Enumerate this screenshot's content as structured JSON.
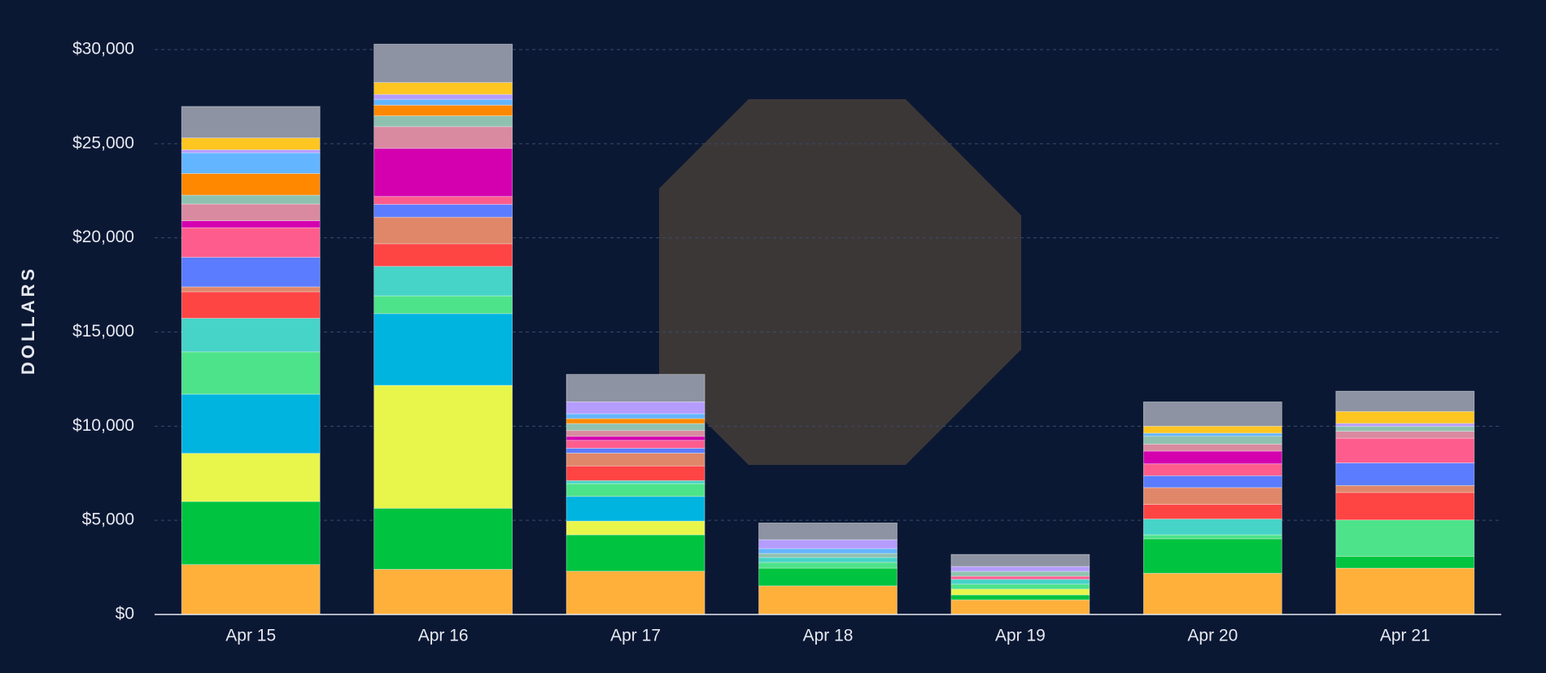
{
  "chart_data": {
    "type": "stacked_bar",
    "y_label": "DOLLARS",
    "categories": [
      "Apr 15",
      "Apr 16",
      "Apr 17",
      "Apr 18",
      "Apr 19",
      "Apr 20",
      "Apr 21"
    ],
    "ylim": [
      0,
      30000
    ],
    "yticks": [
      {
        "value": 0,
        "label": "$0"
      },
      {
        "value": 5000,
        "label": "$5,000"
      },
      {
        "value": 10000,
        "label": "$10,000"
      },
      {
        "value": 15000,
        "label": "$15,000"
      },
      {
        "value": 20000,
        "label": "$20,000"
      },
      {
        "value": 25000,
        "label": "$25,000"
      },
      {
        "value": 30000,
        "label": "$30,000"
      }
    ],
    "grid": true,
    "series": [
      {
        "color": "#ffb03b",
        "values": [
          2650,
          2400,
          2300,
          1520,
          780,
          2190,
          2460
        ]
      },
      {
        "color": "#00c43f",
        "values": [
          3350,
          3240,
          1930,
          940,
          260,
          1830,
          630
        ]
      },
      {
        "color": "#e8f54a",
        "values": [
          2560,
          6530,
          730,
          0,
          310,
          0,
          0
        ]
      },
      {
        "color": "#00b4e0",
        "values": [
          3140,
          3810,
          1310,
          0,
          0,
          0,
          0
        ]
      },
      {
        "color": "#4de38a",
        "values": [
          2250,
          940,
          680,
          310,
          260,
          210,
          1930
        ]
      },
      {
        "color": "#46d4c8",
        "values": [
          1780,
          1570,
          160,
          260,
          260,
          840,
          0
        ]
      },
      {
        "color": "#ff4444",
        "values": [
          1410,
          1200,
          780,
          0,
          0,
          780,
          1460
        ]
      },
      {
        "color": "#e0876a",
        "values": [
          260,
          1410,
          680,
          0,
          0,
          890,
          370
        ]
      },
      {
        "color": "#5b7cff",
        "values": [
          1570,
          680,
          260,
          0,
          0,
          630,
          1200
        ]
      },
      {
        "color": "#ff5c8e",
        "values": [
          1570,
          420,
          420,
          0,
          160,
          630,
          1310
        ]
      },
      {
        "color": "#d400b0",
        "values": [
          370,
          2560,
          210,
          0,
          0,
          680,
          0
        ]
      },
      {
        "color": "#d98aa0",
        "values": [
          890,
          1150,
          310,
          0,
          0,
          370,
          370
        ]
      },
      {
        "color": "#8fc1b0",
        "values": [
          470,
          570,
          370,
          210,
          260,
          420,
          260
        ]
      },
      {
        "color": "#ff8800",
        "values": [
          1150,
          570,
          260,
          0,
          0,
          0,
          0
        ]
      },
      {
        "color": "#64b5ff",
        "values": [
          1100,
          310,
          260,
          260,
          0,
          160,
          0
        ]
      },
      {
        "color": "#b59cff",
        "values": [
          160,
          260,
          630,
          470,
          260,
          0,
          160
        ]
      },
      {
        "color": "#ffc520",
        "values": [
          630,
          630,
          0,
          0,
          0,
          370,
          630
        ]
      },
      {
        "color": "#8e93a3",
        "values": [
          1670,
          2040,
          1460,
          890,
          640,
          1290,
          1080
        ]
      }
    ]
  }
}
